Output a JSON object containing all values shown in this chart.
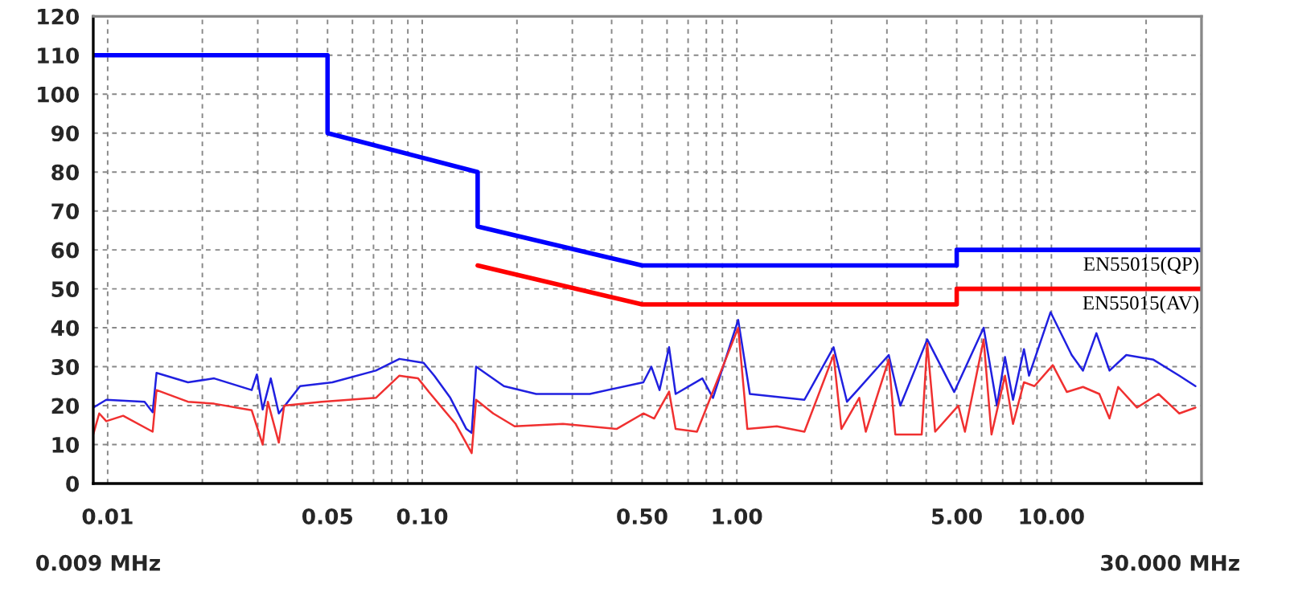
{
  "chart_data": {
    "type": "line",
    "xlim": [
      0.009,
      30
    ],
    "ylim": [
      0,
      120
    ],
    "log": "x",
    "grid": true,
    "legend": false,
    "yticks": [
      0,
      10,
      20,
      30,
      40,
      50,
      60,
      70,
      80,
      90,
      100,
      110,
      120
    ],
    "annotations": [
      "0.009 MHz",
      "30.000 MHz"
    ],
    "xticks": [
      {
        "value": 0.01,
        "label": "0.01"
      },
      {
        "value": 0.02,
        "label": null
      },
      {
        "value": 0.03,
        "label": null
      },
      {
        "value": 0.04,
        "label": null
      },
      {
        "value": 0.05,
        "label": "0.05"
      },
      {
        "value": 0.06,
        "label": null
      },
      {
        "value": 0.07,
        "label": null
      },
      {
        "value": 0.08,
        "label": null
      },
      {
        "value": 0.09,
        "label": null
      },
      {
        "value": 0.1,
        "label": "0.10"
      },
      {
        "value": 0.2,
        "label": null
      },
      {
        "value": 0.3,
        "label": null
      },
      {
        "value": 0.4,
        "label": null
      },
      {
        "value": 0.5,
        "label": "0.50"
      },
      {
        "value": 0.6,
        "label": null
      },
      {
        "value": 0.7,
        "label": null
      },
      {
        "value": 0.8,
        "label": null
      },
      {
        "value": 0.9,
        "label": null
      },
      {
        "value": 1,
        "label": "1.00"
      },
      {
        "value": 2,
        "label": null
      },
      {
        "value": 3,
        "label": null
      },
      {
        "value": 4,
        "label": null
      },
      {
        "value": 5,
        "label": "5.00"
      },
      {
        "value": 6,
        "label": null
      },
      {
        "value": 7,
        "label": null
      },
      {
        "value": 8,
        "label": null
      },
      {
        "value": 9,
        "label": null
      },
      {
        "value": 10,
        "label": "10.00"
      },
      {
        "value": 20,
        "label": null
      }
    ],
    "series": [
      {
        "name": "EN55015(QP)",
        "color": "#0000ff",
        "x": [
          0.009,
          0.05,
          0.05,
          0.15,
          0.15,
          0.5,
          5,
          5,
          30
        ],
        "values": [
          110,
          110,
          90,
          80,
          66,
          56,
          56,
          60,
          60
        ]
      },
      {
        "name": "EN55015(AV)",
        "color": "#ff0000",
        "x": [
          0.15,
          0.5,
          5,
          5,
          30
        ],
        "values": [
          56,
          46,
          46,
          50,
          50
        ]
      },
      {
        "color": "#2020e0",
        "x": [
          0.009,
          0.0099,
          0.0131,
          0.0139,
          0.0143,
          0.018,
          0.0218,
          0.0287,
          0.0298,
          0.0311,
          0.033,
          0.035,
          0.0409,
          0.0518,
          0.0712,
          0.0846,
          0.101,
          0.1092,
          0.1228,
          0.1381,
          0.1436,
          0.1483,
          0.1818,
          0.2302,
          0.3408,
          0.5045,
          0.535,
          0.568,
          0.609,
          0.639,
          0.777,
          0.84,
          1.01,
          1.1,
          1.64,
          2.03,
          2.24,
          2.42,
          3.04,
          3.31,
          4.03,
          4.91,
          6.09,
          6.71,
          7.12,
          7.55,
          8.18,
          8.49,
          9.94,
          11.6,
          12.6,
          13.9,
          15.3,
          17.3,
          21.1,
          25.5,
          28.7
        ],
        "values": [
          19.5,
          21.5,
          21,
          18.3,
          28.4,
          26,
          27,
          24,
          28,
          19,
          27,
          18,
          25,
          26,
          29,
          32,
          31,
          27.7,
          22,
          14,
          13,
          30,
          25,
          23,
          23,
          26,
          30,
          24,
          35,
          23,
          27,
          22,
          42,
          23,
          21.5,
          35,
          21,
          24,
          33,
          20,
          37,
          23.5,
          40,
          20,
          32.5,
          21.5,
          34.5,
          27.7,
          44,
          33,
          29,
          38.6,
          29,
          33,
          31.8,
          27.7,
          25
        ]
      },
      {
        "color": "#f03030",
        "x": [
          0.009,
          0.0094,
          0.0099,
          0.0112,
          0.0139,
          0.0143,
          0.018,
          0.0218,
          0.0287,
          0.0311,
          0.0323,
          0.035,
          0.0364,
          0.0479,
          0.0712,
          0.0846,
          0.097,
          0.105,
          0.1277,
          0.1436,
          0.1483,
          0.1681,
          0.1966,
          0.2801,
          0.4146,
          0.5045,
          0.546,
          0.609,
          0.639,
          0.747,
          1.01,
          1.08,
          1.34,
          1.64,
          2.03,
          2.15,
          2.45,
          2.57,
          3.04,
          3.19,
          3.87,
          4.03,
          4.27,
          5.06,
          5.31,
          6.09,
          6.45,
          7.12,
          7.55,
          8.18,
          8.83,
          10.1,
          11.2,
          12.6,
          14.2,
          15.3,
          16.3,
          18.7,
          21.9,
          25.5,
          28.7
        ],
        "values": [
          12.6,
          18,
          16,
          17.4,
          13.3,
          24,
          21,
          20.5,
          18.8,
          10,
          21,
          10.5,
          20,
          21,
          22,
          27.7,
          27,
          23.5,
          15.3,
          7.8,
          21.5,
          18,
          14.7,
          15.3,
          14,
          18,
          16.7,
          23.6,
          14,
          13.3,
          40,
          14,
          14.7,
          13.3,
          33,
          14,
          22,
          13.3,
          31.8,
          12.6,
          12.6,
          36,
          13.3,
          20,
          13.3,
          37,
          12.6,
          27.7,
          15.3,
          26,
          25,
          30.4,
          23.5,
          24.8,
          23,
          16.7,
          24.8,
          19.5,
          23,
          18,
          19.5
        ]
      }
    ]
  }
}
